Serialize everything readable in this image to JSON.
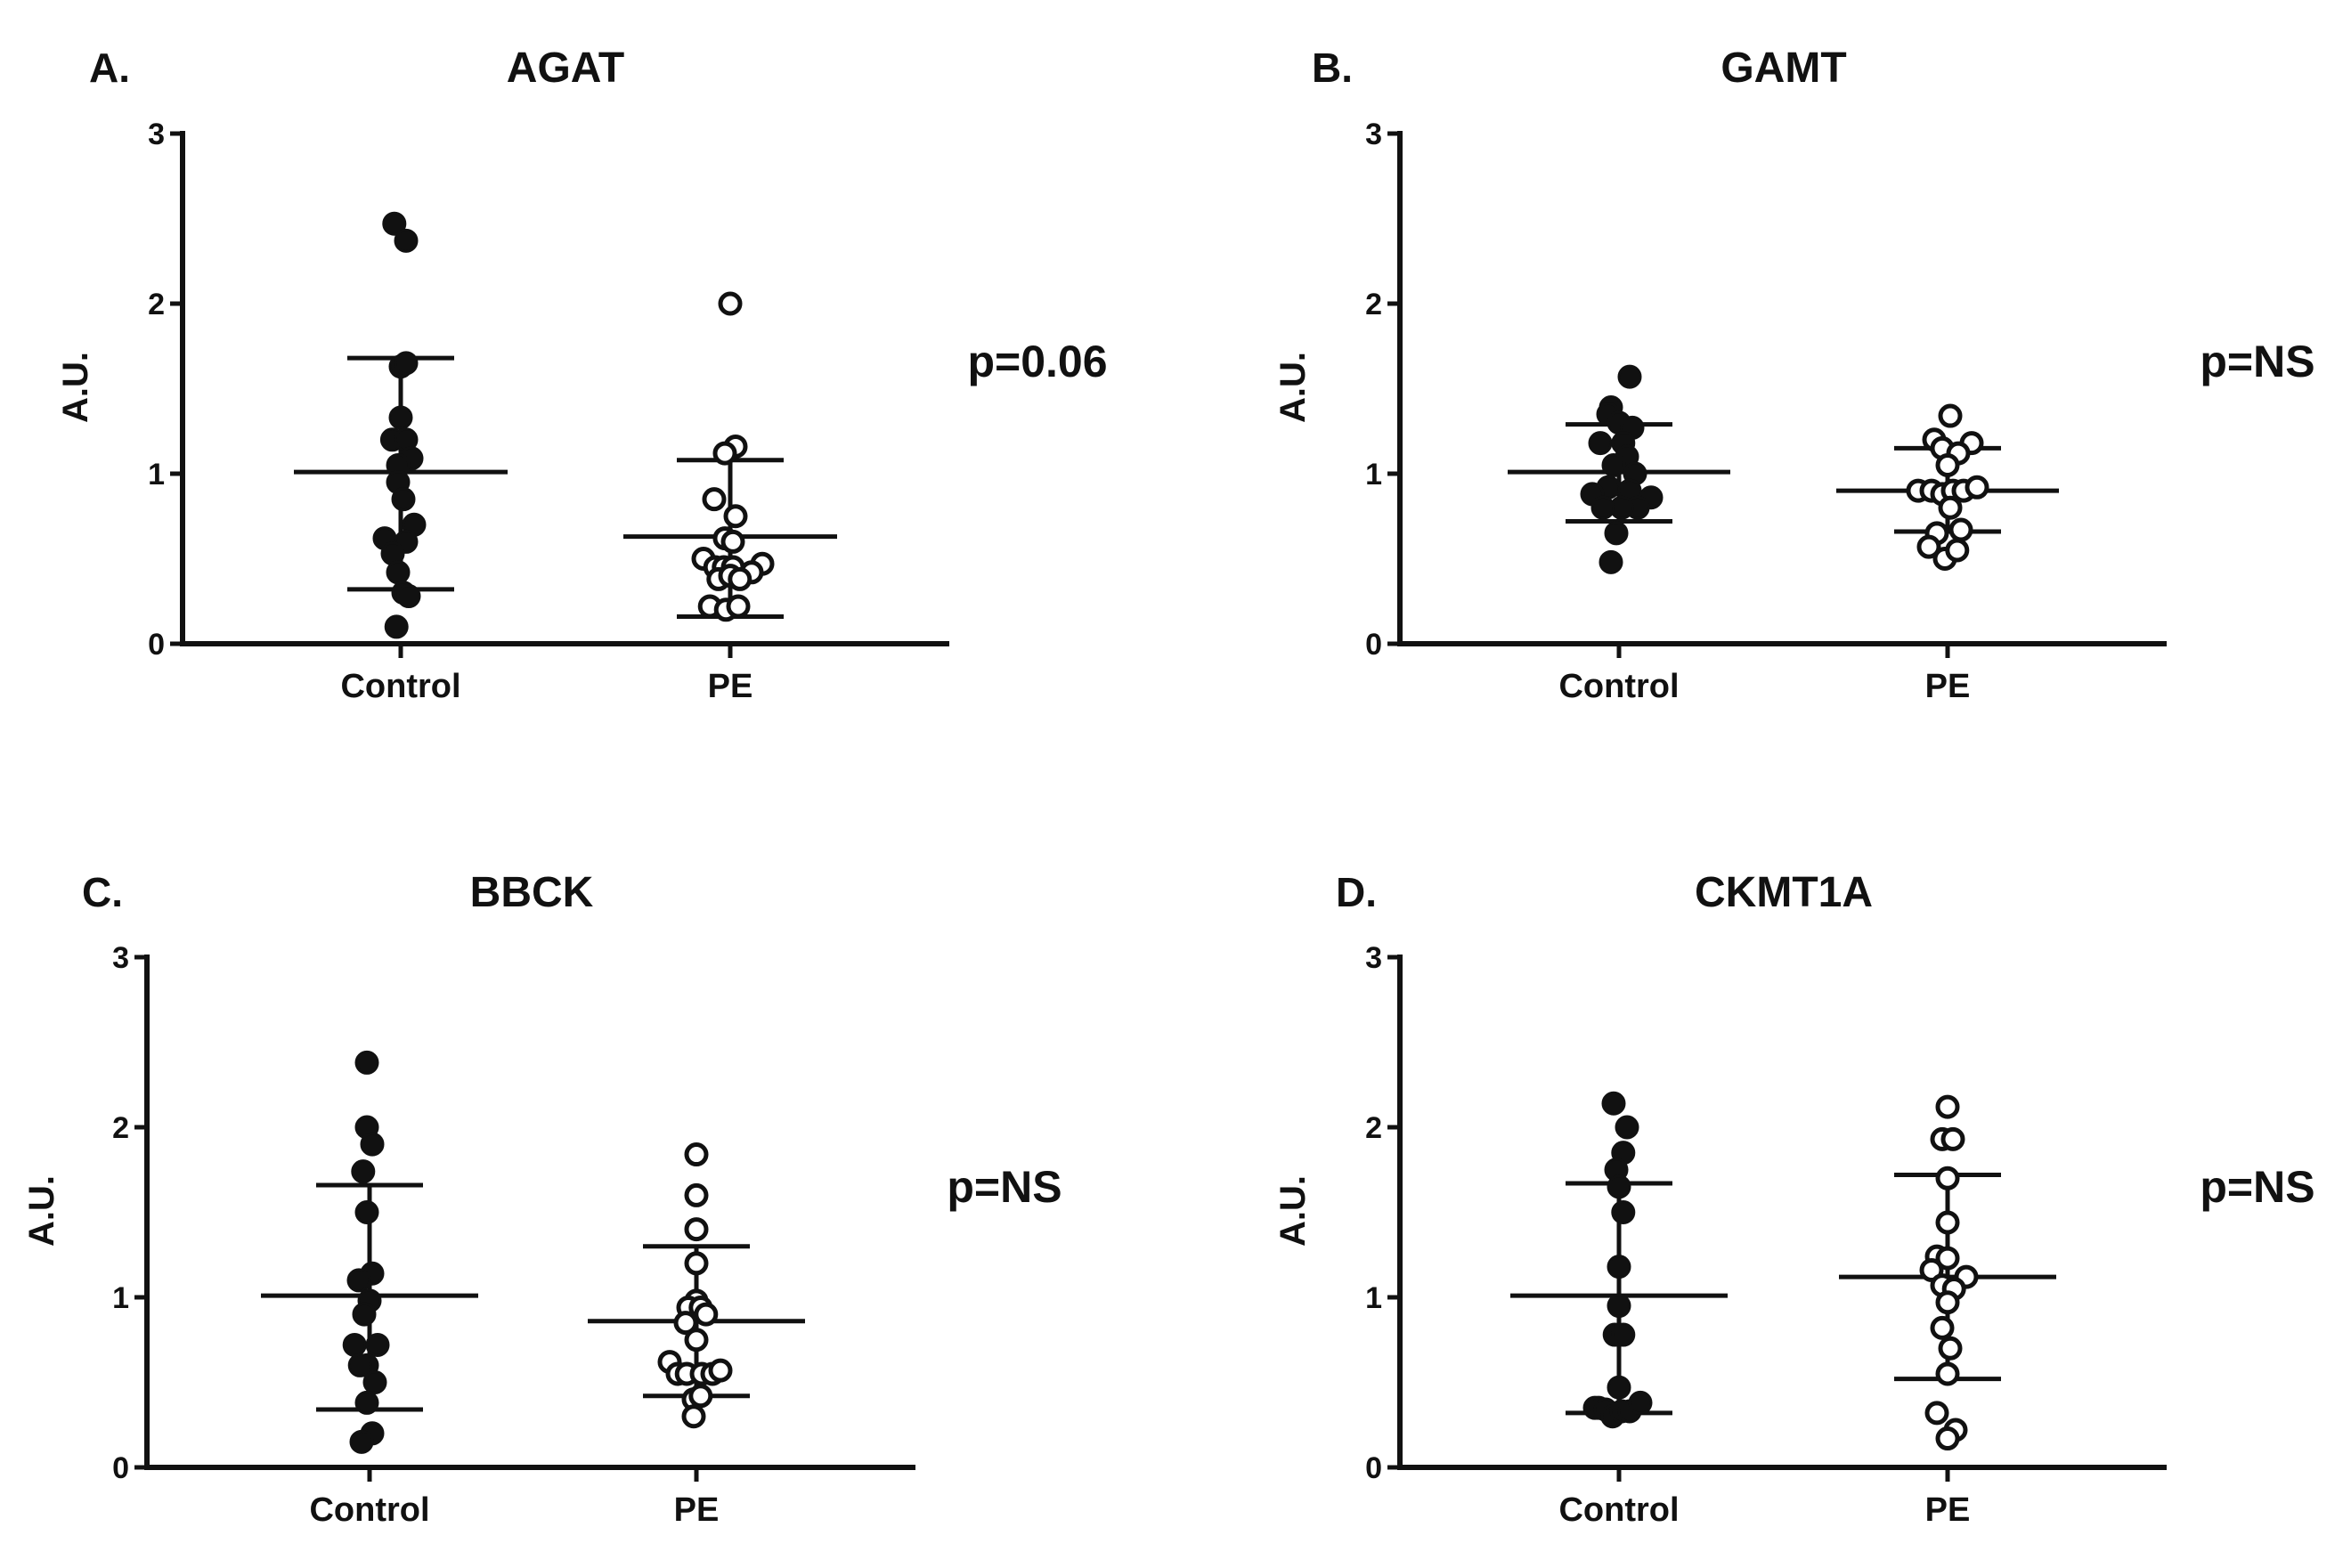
{
  "chart_data": [
    {
      "type": "scatter",
      "panel_label": "A.",
      "title": "AGAT",
      "ylabel": "A.U.",
      "xlabel": "",
      "ylim": [
        0,
        3
      ],
      "yticks": [
        "0",
        "1",
        "2",
        "3"
      ],
      "categories": [
        "Control",
        "PE"
      ],
      "p_value": "p=0.06",
      "series": [
        {
          "name": "Control",
          "style": "filled",
          "mean": 1.01,
          "sd_low": 0.32,
          "sd_high": 1.68,
          "points": [
            {
              "dx": -0.12,
              "y": 2.47
            },
            {
              "dx": 0.1,
              "y": 2.37
            },
            {
              "dx": 0.0,
              "y": 1.63
            },
            {
              "dx": 0.1,
              "y": 1.65
            },
            {
              "dx": 0.0,
              "y": 1.33
            },
            {
              "dx": -0.16,
              "y": 1.2
            },
            {
              "dx": 0.1,
              "y": 1.2
            },
            {
              "dx": 0.2,
              "y": 1.09
            },
            {
              "dx": -0.05,
              "y": 1.05
            },
            {
              "dx": -0.05,
              "y": 0.95
            },
            {
              "dx": 0.05,
              "y": 0.85
            },
            {
              "dx": 0.25,
              "y": 0.7
            },
            {
              "dx": -0.3,
              "y": 0.62
            },
            {
              "dx": 0.1,
              "y": 0.6
            },
            {
              "dx": -0.15,
              "y": 0.53
            },
            {
              "dx": -0.05,
              "y": 0.42
            },
            {
              "dx": 0.05,
              "y": 0.3
            },
            {
              "dx": 0.15,
              "y": 0.28
            },
            {
              "dx": -0.08,
              "y": 0.1
            }
          ]
        },
        {
          "name": "PE",
          "style": "open",
          "mean": 0.63,
          "sd_low": 0.16,
          "sd_high": 1.08,
          "points": [
            {
              "dx": 0.0,
              "y": 2.0
            },
            {
              "dx": 0.1,
              "y": 1.16
            },
            {
              "dx": -0.1,
              "y": 1.12
            },
            {
              "dx": -0.3,
              "y": 0.85
            },
            {
              "dx": 0.1,
              "y": 0.75
            },
            {
              "dx": -0.1,
              "y": 0.62
            },
            {
              "dx": 0.05,
              "y": 0.6
            },
            {
              "dx": -0.5,
              "y": 0.5
            },
            {
              "dx": -0.28,
              "y": 0.45
            },
            {
              "dx": -0.12,
              "y": 0.45
            },
            {
              "dx": 0.05,
              "y": 0.45
            },
            {
              "dx": 0.6,
              "y": 0.47
            },
            {
              "dx": 0.4,
              "y": 0.42
            },
            {
              "dx": -0.22,
              "y": 0.38
            },
            {
              "dx": 0.0,
              "y": 0.4
            },
            {
              "dx": 0.18,
              "y": 0.38
            },
            {
              "dx": -0.38,
              "y": 0.22
            },
            {
              "dx": -0.08,
              "y": 0.2
            },
            {
              "dx": 0.15,
              "y": 0.22
            }
          ]
        }
      ]
    },
    {
      "type": "scatter",
      "panel_label": "B.",
      "title": "GAMT",
      "ylabel": "A.U.",
      "xlabel": "",
      "ylim": [
        0,
        3
      ],
      "yticks": [
        "0",
        "1",
        "2",
        "3"
      ],
      "categories": [
        "Control",
        "PE"
      ],
      "p_value": "p=NS",
      "series": [
        {
          "name": "Control",
          "style": "filled",
          "mean": 1.01,
          "sd_low": 0.72,
          "sd_high": 1.29,
          "points": [
            {
              "dx": 0.2,
              "y": 1.57
            },
            {
              "dx": -0.15,
              "y": 1.39
            },
            {
              "dx": -0.2,
              "y": 1.35
            },
            {
              "dx": 0.0,
              "y": 1.3
            },
            {
              "dx": 0.25,
              "y": 1.27
            },
            {
              "dx": -0.35,
              "y": 1.18
            },
            {
              "dx": 0.08,
              "y": 1.18
            },
            {
              "dx": 0.15,
              "y": 1.1
            },
            {
              "dx": -0.1,
              "y": 1.05
            },
            {
              "dx": 0.3,
              "y": 1.0
            },
            {
              "dx": -0.2,
              "y": 0.92
            },
            {
              "dx": -0.5,
              "y": 0.88
            },
            {
              "dx": 0.2,
              "y": 0.9
            },
            {
              "dx": 0.6,
              "y": 0.86
            },
            {
              "dx": 0.35,
              "y": 0.8
            },
            {
              "dx": 0.05,
              "y": 0.8
            },
            {
              "dx": -0.3,
              "y": 0.8
            },
            {
              "dx": -0.05,
              "y": 0.65
            },
            {
              "dx": -0.15,
              "y": 0.48
            }
          ]
        },
        {
          "name": "PE",
          "style": "open",
          "mean": 0.9,
          "sd_low": 0.66,
          "sd_high": 1.15,
          "points": [
            {
              "dx": 0.05,
              "y": 1.34
            },
            {
              "dx": -0.25,
              "y": 1.2
            },
            {
              "dx": -0.1,
              "y": 1.15
            },
            {
              "dx": 0.45,
              "y": 1.18
            },
            {
              "dx": 0.2,
              "y": 1.12
            },
            {
              "dx": 0.0,
              "y": 1.05
            },
            {
              "dx": -0.55,
              "y": 0.9
            },
            {
              "dx": -0.3,
              "y": 0.9
            },
            {
              "dx": -0.1,
              "y": 0.88
            },
            {
              "dx": 0.1,
              "y": 0.9
            },
            {
              "dx": 0.3,
              "y": 0.9
            },
            {
              "dx": 0.55,
              "y": 0.92
            },
            {
              "dx": 0.05,
              "y": 0.8
            },
            {
              "dx": -0.2,
              "y": 0.65
            },
            {
              "dx": 0.25,
              "y": 0.67
            },
            {
              "dx": -0.35,
              "y": 0.57
            },
            {
              "dx": -0.05,
              "y": 0.5
            },
            {
              "dx": 0.18,
              "y": 0.55
            }
          ]
        }
      ]
    },
    {
      "type": "scatter",
      "panel_label": "C.",
      "title": "BBCK",
      "ylabel": "A.U.",
      "xlabel": "",
      "ylim": [
        0,
        3
      ],
      "yticks": [
        "0",
        "1",
        "2",
        "3"
      ],
      "categories": [
        "Control",
        "PE"
      ],
      "p_value": "p=NS",
      "series": [
        {
          "name": "Control",
          "style": "filled",
          "mean": 1.01,
          "sd_low": 0.34,
          "sd_high": 1.66,
          "points": [
            {
              "dx": -0.05,
              "y": 2.38
            },
            {
              "dx": -0.05,
              "y": 2.0
            },
            {
              "dx": 0.05,
              "y": 1.9
            },
            {
              "dx": -0.12,
              "y": 1.74
            },
            {
              "dx": -0.05,
              "y": 1.5
            },
            {
              "dx": 0.05,
              "y": 1.14
            },
            {
              "dx": -0.2,
              "y": 1.1
            },
            {
              "dx": 0.0,
              "y": 0.98
            },
            {
              "dx": -0.1,
              "y": 0.9
            },
            {
              "dx": -0.28,
              "y": 0.72
            },
            {
              "dx": 0.15,
              "y": 0.72
            },
            {
              "dx": -0.05,
              "y": 0.6
            },
            {
              "dx": -0.18,
              "y": 0.6
            },
            {
              "dx": 0.1,
              "y": 0.5
            },
            {
              "dx": -0.05,
              "y": 0.38
            },
            {
              "dx": 0.05,
              "y": 0.2
            },
            {
              "dx": -0.15,
              "y": 0.15
            }
          ]
        },
        {
          "name": "PE",
          "style": "open",
          "mean": 0.86,
          "sd_low": 0.42,
          "sd_high": 1.3,
          "points": [
            {
              "dx": 0.0,
              "y": 1.84
            },
            {
              "dx": 0.0,
              "y": 1.6
            },
            {
              "dx": 0.0,
              "y": 1.4
            },
            {
              "dx": 0.0,
              "y": 1.2
            },
            {
              "dx": 0.0,
              "y": 0.98
            },
            {
              "dx": -0.15,
              "y": 0.94
            },
            {
              "dx": 0.08,
              "y": 0.94
            },
            {
              "dx": 0.18,
              "y": 0.9
            },
            {
              "dx": -0.2,
              "y": 0.85
            },
            {
              "dx": 0.0,
              "y": 0.75
            },
            {
              "dx": -0.5,
              "y": 0.62
            },
            {
              "dx": -0.35,
              "y": 0.55
            },
            {
              "dx": -0.18,
              "y": 0.55
            },
            {
              "dx": 0.1,
              "y": 0.55
            },
            {
              "dx": 0.3,
              "y": 0.55
            },
            {
              "dx": 0.45,
              "y": 0.57
            },
            {
              "dx": -0.05,
              "y": 0.4
            },
            {
              "dx": 0.08,
              "y": 0.42
            },
            {
              "dx": -0.05,
              "y": 0.3
            }
          ]
        }
      ]
    },
    {
      "type": "scatter",
      "panel_label": "D.",
      "title": "CKMT1A",
      "ylabel": "A.U.",
      "xlabel": "",
      "ylim": [
        0,
        3
      ],
      "yticks": [
        "0",
        "1",
        "2",
        "3"
      ],
      "categories": [
        "Control",
        "PE"
      ],
      "p_value": "p=NS",
      "series": [
        {
          "name": "Control",
          "style": "filled",
          "mean": 1.01,
          "sd_low": 0.32,
          "sd_high": 1.67,
          "points": [
            {
              "dx": -0.1,
              "y": 2.14
            },
            {
              "dx": 0.15,
              "y": 2.0
            },
            {
              "dx": 0.08,
              "y": 1.85
            },
            {
              "dx": -0.05,
              "y": 1.75
            },
            {
              "dx": 0.0,
              "y": 1.65
            },
            {
              "dx": 0.08,
              "y": 1.5
            },
            {
              "dx": 0.0,
              "y": 1.18
            },
            {
              "dx": 0.0,
              "y": 0.95
            },
            {
              "dx": -0.08,
              "y": 0.78
            },
            {
              "dx": 0.08,
              "y": 0.78
            },
            {
              "dx": 0.0,
              "y": 0.47
            },
            {
              "dx": -0.45,
              "y": 0.35
            },
            {
              "dx": -0.38,
              "y": 0.35
            },
            {
              "dx": -0.25,
              "y": 0.34
            },
            {
              "dx": -0.12,
              "y": 0.3
            },
            {
              "dx": 0.05,
              "y": 0.33
            },
            {
              "dx": 0.2,
              "y": 0.33
            },
            {
              "dx": 0.4,
              "y": 0.38
            }
          ]
        },
        {
          "name": "PE",
          "style": "open",
          "mean": 1.12,
          "sd_low": 0.52,
          "sd_high": 1.72,
          "points": [
            {
              "dx": 0.0,
              "y": 2.12
            },
            {
              "dx": -0.1,
              "y": 1.93
            },
            {
              "dx": 0.1,
              "y": 1.93
            },
            {
              "dx": 0.0,
              "y": 1.7
            },
            {
              "dx": 0.0,
              "y": 1.44
            },
            {
              "dx": -0.2,
              "y": 1.24
            },
            {
              "dx": 0.0,
              "y": 1.23
            },
            {
              "dx": -0.3,
              "y": 1.16
            },
            {
              "dx": 0.35,
              "y": 1.12
            },
            {
              "dx": -0.1,
              "y": 1.07
            },
            {
              "dx": 0.12,
              "y": 1.05
            },
            {
              "dx": 0.0,
              "y": 0.97
            },
            {
              "dx": -0.1,
              "y": 0.82
            },
            {
              "dx": 0.05,
              "y": 0.7
            },
            {
              "dx": 0.0,
              "y": 0.55
            },
            {
              "dx": -0.2,
              "y": 0.32
            },
            {
              "dx": 0.15,
              "y": 0.22
            },
            {
              "dx": 0.0,
              "y": 0.17
            }
          ]
        }
      ]
    }
  ]
}
